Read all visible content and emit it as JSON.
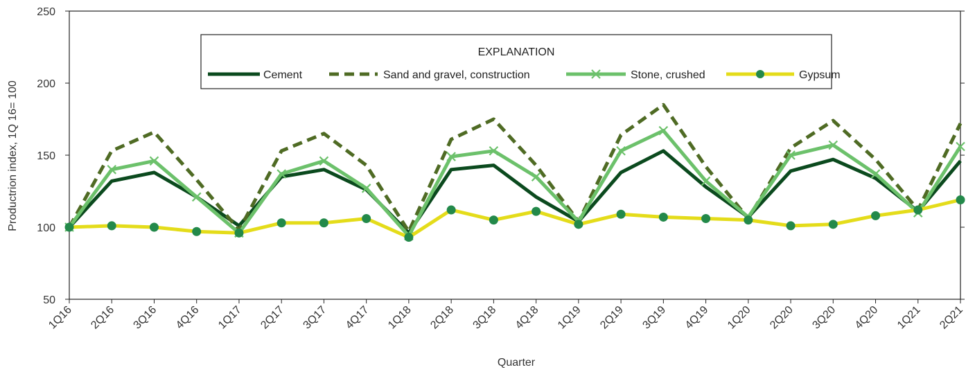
{
  "chart_data": {
    "type": "line",
    "title": "",
    "xlabel": "Quarter",
    "ylabel": "Productrion index, 1Q 16= 100",
    "ylim": [
      50,
      250
    ],
    "yticks": [
      50,
      100,
      150,
      200,
      250
    ],
    "grid": false,
    "legend": {
      "title": "EXPLANATION",
      "placement": "top-center"
    },
    "categories": [
      "1Q16",
      "2Q16",
      "3Q16",
      "4Q16",
      "1Q17",
      "2Q17",
      "3Q17",
      "4Q17",
      "1Q18",
      "2Q18",
      "3Q18",
      "4Q18",
      "1Q19",
      "2Q19",
      "3Q19",
      "4Q19",
      "1Q20",
      "2Q20",
      "3Q20",
      "4Q20",
      "1Q21",
      "2Q21"
    ],
    "series": [
      {
        "name": "Cement",
        "color": "#0b4a1e",
        "style": "solid",
        "marker": "none",
        "values": [
          100,
          132,
          138,
          121,
          101,
          135,
          140,
          126,
          96,
          140,
          143,
          121,
          104,
          138,
          153,
          128,
          107,
          139,
          147,
          134,
          111,
          146
        ]
      },
      {
        "name": "Sand and gravel, construction",
        "color": "#4f6b24",
        "style": "dashed",
        "marker": "none",
        "values": [
          100,
          153,
          166,
          133,
          98,
          153,
          165,
          143,
          97,
          161,
          175,
          143,
          104,
          164,
          185,
          142,
          106,
          155,
          174,
          147,
          112,
          172
        ]
      },
      {
        "name": "Stone, crushed",
        "color": "#6cc16b",
        "style": "solid",
        "marker": "x",
        "values": [
          100,
          140,
          146,
          121,
          96,
          137,
          146,
          127,
          94,
          149,
          153,
          135,
          104,
          153,
          167,
          132,
          107,
          150,
          157,
          137,
          110,
          156
        ]
      },
      {
        "name": "Gypsum",
        "color": "#e4dc1a",
        "markerColor": "#23894a",
        "style": "solid",
        "marker": "circle",
        "values": [
          100,
          101,
          100,
          97,
          96,
          103,
          103,
          106,
          93,
          112,
          105,
          111,
          102,
          109,
          107,
          106,
          105,
          101,
          102,
          108,
          112,
          119
        ]
      }
    ]
  }
}
